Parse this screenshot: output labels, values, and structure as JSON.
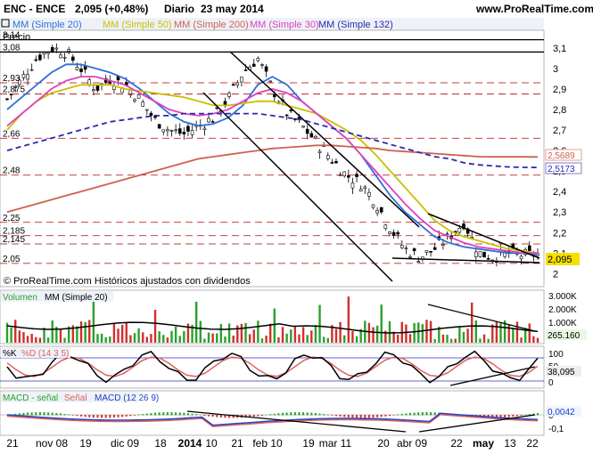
{
  "header": {
    "symbol": "ENC - ENCE",
    "price_change": "2,095 (+0,48%)",
    "period": "Diario",
    "date": "23 may 2014",
    "site": "www.ProRealTime.com"
  },
  "legend": {
    "ma20": "MM (Simple 20)",
    "ma50": "MM (Simple 50)",
    "ma200": "MM (Simple 200)",
    "ma30": "MM (Simple 30)",
    "ma132": "MM (Simple 132)"
  },
  "price_panel": {
    "label": "Precio",
    "watermark": "© ProRealTime.com  Históricos ajustados con dividendos",
    "current_label": "2,095",
    "ma200_label": "2,5689",
    "ma132_label": "2,5173",
    "yticks": [
      "3,1",
      "3",
      "2,9",
      "2,8",
      "2,7",
      "2,6",
      "2,5",
      "2,4",
      "2,3",
      "2,2",
      "2,1",
      "2"
    ],
    "hline_labels": [
      "3,14",
      "3,08",
      "2,93",
      "2,875",
      "2,66",
      "2,48",
      "2,25",
      "2,185",
      "2,145",
      "2,05"
    ]
  },
  "volume_panel": {
    "label": "Volumen",
    "ma_label": "MM (Simple 20)",
    "yticks": [
      "3.000K",
      "2.000K",
      "1.000K"
    ],
    "current_label": "265.160"
  },
  "stoch_panel": {
    "label_k": "%K",
    "label_d": "%D (14 3 5)",
    "yticks": [
      "100",
      "50",
      "0"
    ],
    "current_label": "38,095"
  },
  "macd_panel": {
    "label_hist": "MACD - señal",
    "label_signal": "Señal",
    "label_macd": "MACD (12 26 9)",
    "yticks": [
      "0",
      "-0,1"
    ],
    "current_label": "0,0042"
  },
  "xaxis": {
    "labels": [
      "21",
      "nov 08",
      "19",
      "dic 09",
      "18",
      "2014",
      "10",
      "21",
      "feb 10",
      "19",
      "mar 11",
      "20",
      "abr 09",
      "22",
      "may",
      "13",
      "22"
    ]
  },
  "colors": {
    "ma20": "#2f6fd8",
    "ma50": "#c8c000",
    "ma200": "#d06050",
    "ma30": "#e040c0",
    "ma132": "#2a2ab0",
    "volume_up": "#2ca02c",
    "volume_down": "#d03030",
    "stoch_k": "#000000",
    "stoch_d": "#e06060",
    "macd": "#2040c0",
    "signal": "#e06060"
  },
  "chart_data": {
    "type": "line",
    "series": [
      {
        "name": "MM (Simple 20)",
        "values": [
          2.8,
          2.86,
          2.92,
          2.98,
          3.02,
          3.02,
          3.0,
          2.98,
          2.95,
          2.9,
          2.84,
          2.78,
          2.74,
          2.72,
          2.73,
          2.76,
          2.82,
          2.92,
          2.96,
          2.92,
          2.84,
          2.78,
          2.72,
          2.66,
          2.58,
          2.48,
          2.38,
          2.3,
          2.24,
          2.18,
          2.15,
          2.13,
          2.12,
          2.11,
          2.1,
          2.1,
          2.09
        ]
      },
      {
        "name": "MM (Simple 50)",
        "values": [
          2.7,
          2.78,
          2.84,
          2.88,
          2.9,
          2.92,
          2.92,
          2.92,
          2.9,
          2.89,
          2.88,
          2.87,
          2.86,
          2.84,
          2.82,
          2.82,
          2.83,
          2.84,
          2.84,
          2.82,
          2.8,
          2.78,
          2.74,
          2.7,
          2.65,
          2.58,
          2.5,
          2.42,
          2.34,
          2.26,
          2.21,
          2.18,
          2.16,
          2.14,
          2.12,
          2.11,
          2.1
        ]
      },
      {
        "name": "MM (Simple 200)",
        "values": [
          2.3,
          2.32,
          2.34,
          2.36,
          2.38,
          2.4,
          2.42,
          2.44,
          2.46,
          2.48,
          2.5,
          2.52,
          2.54,
          2.56,
          2.57,
          2.58,
          2.59,
          2.6,
          2.61,
          2.615,
          2.62,
          2.625,
          2.625,
          2.62,
          2.615,
          2.61,
          2.6,
          2.595,
          2.59,
          2.585,
          2.58,
          2.575,
          2.57,
          2.569,
          2.569,
          2.569,
          2.5689
        ]
      },
      {
        "name": "MM (Simple 30)",
        "values": [
          2.72,
          2.78,
          2.84,
          2.9,
          2.94,
          2.96,
          2.96,
          2.94,
          2.92,
          2.88,
          2.84,
          2.8,
          2.78,
          2.77,
          2.78,
          2.8,
          2.84,
          2.88,
          2.9,
          2.88,
          2.84,
          2.78,
          2.72,
          2.66,
          2.58,
          2.5,
          2.42,
          2.34,
          2.27,
          2.21,
          2.18,
          2.15,
          2.13,
          2.12,
          2.11,
          2.1,
          2.1
        ]
      },
      {
        "name": "MM (Simple 132)",
        "values": [
          2.6,
          2.62,
          2.64,
          2.66,
          2.68,
          2.7,
          2.72,
          2.74,
          2.75,
          2.76,
          2.77,
          2.77,
          2.78,
          2.78,
          2.78,
          2.78,
          2.78,
          2.78,
          2.77,
          2.76,
          2.75,
          2.73,
          2.71,
          2.69,
          2.67,
          2.65,
          2.63,
          2.61,
          2.59,
          2.57,
          2.56,
          2.54,
          2.53,
          2.525,
          2.52,
          2.518,
          2.5173
        ]
      }
    ],
    "close": [
      2.85,
      2.95,
      3.05,
      3.1,
      3.08,
      3.0,
      2.9,
      2.95,
      2.92,
      2.85,
      2.75,
      2.7,
      2.68,
      2.72,
      2.76,
      2.85,
      2.98,
      3.05,
      2.9,
      2.78,
      2.72,
      2.64,
      2.56,
      2.48,
      2.44,
      2.35,
      2.22,
      2.12,
      2.08,
      2.12,
      2.18,
      2.25,
      2.1,
      2.08,
      2.1,
      2.09,
      2.095
    ],
    "ylim": [
      1.98,
      3.16
    ],
    "last_close": 2.095
  }
}
